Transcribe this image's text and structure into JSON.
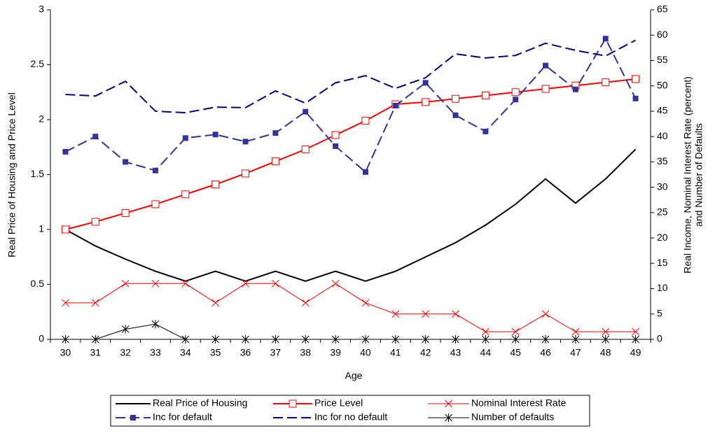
{
  "chart_data": {
    "type": "line",
    "xlabel": "Age",
    "ylabel": "Real Price of Housing and Price Level",
    "y2label": [
      "Real Income, Nominal Interest Rate (percent)",
      "and Number of Defaults"
    ],
    "categories": [
      "30",
      "31",
      "32",
      "33",
      "34",
      "35",
      "36",
      "37",
      "38",
      "39",
      "40",
      "41",
      "42",
      "43",
      "44",
      "45",
      "46",
      "47",
      "48",
      "49"
    ],
    "ylim": [
      0,
      3
    ],
    "yticks": [
      0,
      0.5,
      1,
      1.5,
      2,
      2.5,
      3
    ],
    "y2lim": [
      0,
      65
    ],
    "y2ticks": [
      0,
      5,
      10,
      15,
      20,
      25,
      30,
      35,
      40,
      45,
      50,
      55,
      60,
      65
    ],
    "series": [
      {
        "name": "Real Price of Housing",
        "color": "#000000",
        "width": 2,
        "dash": false,
        "marker": "none",
        "values": [
          1.0,
          0.85,
          0.73,
          0.62,
          0.53,
          0.62,
          0.53,
          0.62,
          0.53,
          0.62,
          0.53,
          0.62,
          0.75,
          0.88,
          1.04,
          1.23,
          1.46,
          1.24,
          1.46,
          1.73
        ]
      },
      {
        "name": "Price Level",
        "color": "#ff0000",
        "width": 2,
        "dash": false,
        "marker": "square-open",
        "values": [
          1.0,
          1.07,
          1.15,
          1.23,
          1.32,
          1.41,
          1.51,
          1.62,
          1.73,
          1.86,
          1.99,
          2.14,
          2.16,
          2.19,
          2.22,
          2.25,
          2.28,
          2.31,
          2.34,
          2.37
        ]
      },
      {
        "name": "Nominal Interest Rate",
        "color": "#ff0000",
        "width": 1,
        "dash": false,
        "marker": "x",
        "axis": "y2",
        "values": [
          7.2,
          7.2,
          11,
          11,
          11,
          7.2,
          11,
          11,
          7.2,
          11,
          7.2,
          5,
          5,
          5,
          1.5,
          1.5,
          5,
          1.5,
          1.5,
          1.5
        ]
      },
      {
        "name": "Inc for default",
        "color": "#333399",
        "width": 2,
        "dash": true,
        "marker": "square",
        "axis": "y2",
        "values": [
          37,
          40,
          35,
          33.3,
          39.7,
          40.4,
          39,
          40.7,
          44.9,
          38.1,
          33,
          46.1,
          50.6,
          44.2,
          41,
          47.3,
          54,
          49.3,
          59.3,
          47.5
        ]
      },
      {
        "name": "Inc for no default",
        "color": "#000080",
        "width": 2,
        "dash": true,
        "marker": "none",
        "axis": "y2",
        "values": [
          48.3,
          48,
          50.9,
          45,
          44.7,
          45.8,
          45.7,
          49,
          46.6,
          50.6,
          52,
          49.5,
          51.6,
          56.3,
          55.5,
          56,
          58.4,
          57,
          55.9,
          59
        ]
      },
      {
        "name": "Number of defaults",
        "color": "#000000",
        "width": 1,
        "dash": false,
        "marker": "star",
        "axis": "y2",
        "values": [
          0,
          0,
          2,
          3,
          0,
          0,
          0,
          0,
          0,
          0,
          0,
          0,
          0,
          0,
          0,
          0,
          0,
          0,
          0,
          0
        ]
      }
    ]
  }
}
